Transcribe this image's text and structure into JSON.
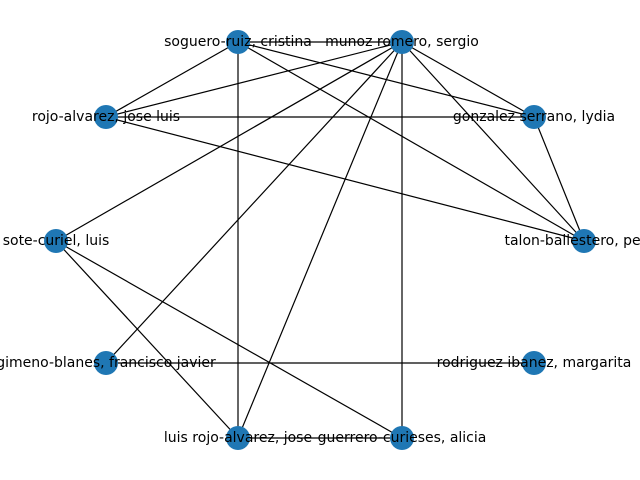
{
  "graph": {
    "node_color": "#1f77b4",
    "edge_color": "#000000",
    "nodes": [
      {
        "id": "munoz",
        "label": "munoz romero, sergio"
      },
      {
        "id": "soguero",
        "label": "soguero-ruiz, cristina"
      },
      {
        "id": "rojo_jl",
        "label": "rojo-alvarez, jose luis"
      },
      {
        "id": "sote",
        "label": "sote-curiel, luis"
      },
      {
        "id": "gimeno",
        "label": "gimeno-blanes, francisco javier"
      },
      {
        "id": "luis_rojo",
        "label": "luis rojo-alvarez, jose"
      },
      {
        "id": "guerrero",
        "label": "guerrero-curieses, alicia"
      },
      {
        "id": "rodriguez",
        "label": "rodriguez ibanez, margarita"
      },
      {
        "id": "talon",
        "label": "talon-ballestero, pedro"
      },
      {
        "id": "gonzalez",
        "label": "gonzalez serrano, lydia"
      }
    ],
    "edges": [
      [
        "soguero",
        "munoz"
      ],
      [
        "soguero",
        "rojo_jl"
      ],
      [
        "soguero",
        "gonzalez"
      ],
      [
        "soguero",
        "talon"
      ],
      [
        "soguero",
        "luis_rojo"
      ],
      [
        "munoz",
        "rojo_jl"
      ],
      [
        "munoz",
        "gonzalez"
      ],
      [
        "munoz",
        "talon"
      ],
      [
        "munoz",
        "sote"
      ],
      [
        "munoz",
        "gimeno"
      ],
      [
        "munoz",
        "luis_rojo"
      ],
      [
        "munoz",
        "guerrero"
      ],
      [
        "rojo_jl",
        "gonzalez"
      ],
      [
        "rojo_jl",
        "talon"
      ],
      [
        "gonzalez",
        "talon"
      ],
      [
        "sote",
        "luis_rojo"
      ],
      [
        "sote",
        "guerrero"
      ],
      [
        "gimeno",
        "rodriguez"
      ],
      [
        "luis_rojo",
        "guerrero"
      ]
    ]
  }
}
